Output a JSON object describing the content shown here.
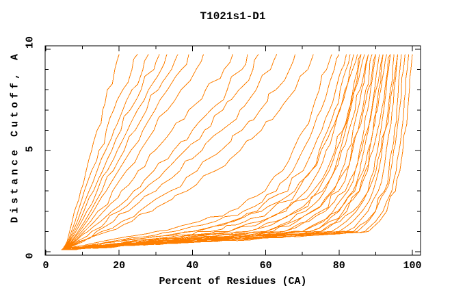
{
  "colors": {
    "curve": "#ff7f00",
    "axis": "#000000",
    "background": "#ffffff",
    "text": "#000000"
  },
  "chart_data": {
    "type": "line",
    "title": "T1021s1-D1",
    "xlabel": "Percent of Residues (CA)",
    "ylabel": "Distance Cutoff, A",
    "xlim": [
      0,
      102
    ],
    "ylim": [
      -0.2,
      10.2
    ],
    "grid": false,
    "legend": false,
    "curve_color": "#ff7f00",
    "x_axis": {
      "major_ticks": [
        {
          "value": 0,
          "label": "0"
        },
        {
          "value": 20,
          "label": "20"
        },
        {
          "value": 40,
          "label": "40"
        },
        {
          "value": 60,
          "label": "60"
        },
        {
          "value": 80,
          "label": "80"
        },
        {
          "value": 100,
          "label": "100"
        }
      ],
      "minor_ticks": [
        10,
        30,
        50,
        70,
        90
      ]
    },
    "y_axis": {
      "major_ticks": [
        {
          "value": 0,
          "label": "0"
        },
        {
          "value": 5,
          "label": "5"
        },
        {
          "value": 10,
          "label": "10"
        }
      ],
      "minor_ticks": [
        1,
        2,
        3,
        4,
        6,
        7,
        8,
        9
      ]
    },
    "y_levels": [
      0.1,
      0.3,
      0.5,
      1,
      1.5,
      2,
      3,
      4,
      5,
      6,
      7,
      8,
      9,
      9.75
    ],
    "series": [
      {
        "name": "curve-01",
        "x": [
          4.5,
          5.2,
          5.8,
          6.5,
          7.2,
          7.8,
          9.5,
          11,
          12.5,
          14,
          15.5,
          16.8,
          18.8,
          20
        ]
      },
      {
        "name": "curve-02",
        "x": [
          4.4,
          5.4,
          6,
          7,
          8,
          8.8,
          10.5,
          12.5,
          14.5,
          16.5,
          18.5,
          21,
          23.5,
          25
        ]
      },
      {
        "name": "curve-03",
        "x": [
          4.6,
          5.5,
          6.2,
          7.4,
          8.6,
          9.6,
          11.8,
          14,
          16.3,
          18.6,
          21,
          23.5,
          26.5,
          28
        ]
      },
      {
        "name": "curve-04",
        "x": [
          4.5,
          5.6,
          6.4,
          7.8,
          9.2,
          10.4,
          13,
          15.5,
          18,
          20.5,
          23,
          26,
          29.5,
          31
        ]
      },
      {
        "name": "curve-05",
        "x": [
          4.7,
          5.8,
          6.6,
          8.2,
          9.8,
          11.2,
          14,
          16.8,
          19.5,
          22.3,
          25,
          28,
          31.5,
          33
        ]
      },
      {
        "name": "curve-06",
        "x": [
          4.5,
          5.9,
          6.9,
          8.8,
          10.6,
          12.2,
          15.3,
          18.4,
          21.4,
          24.4,
          27.5,
          30.7,
          34.3,
          36
        ]
      },
      {
        "name": "curve-07",
        "x": [
          4.6,
          6,
          7.1,
          9.2,
          11.2,
          13,
          16.5,
          19.8,
          23.2,
          26.5,
          29.8,
          33.2,
          37,
          39
        ]
      },
      {
        "name": "curve-08",
        "x": [
          4.8,
          6.2,
          7.4,
          9.8,
          12.2,
          14.2,
          18.2,
          22,
          25.8,
          29.5,
          33.2,
          36.9,
          41,
          43
        ]
      },
      {
        "name": "curve-09",
        "x": [
          4.6,
          6.3,
          7.7,
          10.5,
          13.3,
          15.8,
          20.6,
          25.2,
          29.8,
          34.4,
          39,
          43.6,
          48.6,
          51
        ]
      },
      {
        "name": "curve-10",
        "x": [
          4.7,
          6.5,
          8,
          11.5,
          15,
          18,
          24,
          29.5,
          34.8,
          40,
          45,
          49.5,
          53.5,
          55
        ]
      },
      {
        "name": "curve-11",
        "x": [
          4.9,
          6.8,
          8.4,
          12.5,
          16.5,
          20,
          26.5,
          32.5,
          38,
          43.3,
          48.3,
          52.7,
          56.5,
          58
        ]
      },
      {
        "name": "curve-12",
        "x": [
          4.8,
          7,
          8.9,
          13.8,
          18.5,
          22.5,
          30,
          36.6,
          42.6,
          48,
          53,
          57.4,
          61.3,
          63
        ]
      },
      {
        "name": "curve-13",
        "x": [
          5,
          7.3,
          9.5,
          15.3,
          20.8,
          25.5,
          34,
          41.3,
          47.8,
          53.5,
          58.5,
          62.8,
          66.5,
          68
        ]
      },
      {
        "name": "curve-14",
        "x": [
          4.9,
          7.6,
          10.2,
          17,
          23.5,
          29,
          38.5,
          46.3,
          53,
          58.8,
          63.8,
          68,
          71.5,
          73
        ]
      },
      {
        "name": "curve-15",
        "x": [
          4.2,
          10,
          15,
          30,
          42,
          50.2,
          59.8,
          64.6,
          67.4,
          70.3,
          72.7,
          74.6,
          76.6,
          78
        ]
      },
      {
        "name": "curve-16",
        "x": [
          4.5,
          11,
          17.5,
          35,
          46.3,
          53.9,
          62.9,
          67.4,
          70.1,
          72.8,
          75.1,
          76.9,
          78.7,
          80
        ]
      },
      {
        "name": "curve-17",
        "x": [
          4.8,
          12,
          20,
          40,
          50.5,
          57.6,
          66,
          70.2,
          72.8,
          75.3,
          77.4,
          79.1,
          80.7,
          82
        ]
      },
      {
        "name": "curve-18",
        "x": [
          4.3,
          13,
          22.5,
          45,
          54.5,
          61,
          68.6,
          72.4,
          74.6,
          76.9,
          78.8,
          80.3,
          81.9,
          83
        ]
      },
      {
        "name": "curve-19",
        "x": [
          4.6,
          14,
          25,
          50,
          58.5,
          64.3,
          71.1,
          74.5,
          76.5,
          78.6,
          80.3,
          81.6,
          83,
          84
        ]
      },
      {
        "name": "curve-20",
        "x": [
          5,
          12,
          20,
          40,
          51.3,
          58.9,
          67.9,
          72.4,
          75.1,
          77.8,
          80.1,
          81.9,
          83.7,
          85
        ]
      },
      {
        "name": "curve-21",
        "x": [
          4.4,
          15,
          27.5,
          55,
          62.8,
          68,
          74.2,
          77.3,
          79.2,
          81,
          82.6,
          83.8,
          85.1,
          86
        ]
      },
      {
        "name": "curve-22",
        "x": [
          4.7,
          16,
          30,
          60,
          66.5,
          70.9,
          76.1,
          78.7,
          80.3,
          81.8,
          83.1,
          84.2,
          85.2,
          86
        ]
      },
      {
        "name": "curve-23",
        "x": [
          4.9,
          14,
          25,
          50,
          59.3,
          65.5,
          72.9,
          76.6,
          78.9,
          81.1,
          82.9,
          84.4,
          85.9,
          87
        ]
      },
      {
        "name": "curve-24",
        "x": [
          4.2,
          16.4,
          31,
          62,
          68.5,
          72.9,
          78.1,
          80.7,
          82.3,
          83.8,
          85.1,
          86.2,
          87.2,
          88
        ]
      },
      {
        "name": "curve-25",
        "x": [
          4.5,
          15,
          27.5,
          55,
          63.3,
          68.9,
          75.5,
          78.8,
          80.7,
          82.7,
          84.4,
          85.7,
          87,
          88
        ]
      },
      {
        "name": "curve-26",
        "x": [
          4.8,
          17,
          32.5,
          65,
          71,
          75.1,
          79.9,
          82.3,
          83.7,
          85.2,
          86.4,
          87.3,
          88.3,
          89
        ]
      },
      {
        "name": "curve-27",
        "x": [
          4.3,
          18,
          35,
          70,
          75,
          78.4,
          82.4,
          84.4,
          85.6,
          86.8,
          87.8,
          88.6,
          89.4,
          90
        ]
      },
      {
        "name": "curve-28",
        "x": [
          4.6,
          16,
          30,
          60,
          67.5,
          72.6,
          78.6,
          81.6,
          83.4,
          85.2,
          86.7,
          87.9,
          89.1,
          90
        ]
      },
      {
        "name": "curve-29",
        "x": [
          5,
          18.4,
          36,
          72,
          76.8,
          80,
          83.8,
          85.7,
          86.8,
          88,
          88.9,
          89.7,
          90.4,
          91
        ]
      },
      {
        "name": "curve-30",
        "x": [
          4.4,
          17,
          32.5,
          65,
          71.8,
          76.3,
          81.7,
          84.4,
          86.1,
          87.7,
          89,
          90.1,
          91.2,
          92
        ]
      },
      {
        "name": "curve-31",
        "x": [
          4.7,
          19,
          37.5,
          75,
          79.3,
          82.1,
          85.5,
          87.2,
          88.3,
          89.3,
          90.1,
          90.8,
          91.5,
          92
        ]
      },
      {
        "name": "curve-32",
        "x": [
          4.9,
          18,
          35,
          70,
          75.8,
          79.7,
          84.3,
          86.6,
          87.9,
          89.3,
          90.5,
          91.4,
          92.3,
          93
        ]
      },
      {
        "name": "curve-33",
        "x": [
          4.2,
          19.6,
          39,
          78,
          82,
          84.7,
          87.9,
          89.5,
          90.5,
          91.4,
          92.2,
          92.9,
          93.5,
          94
        ]
      },
      {
        "name": "curve-34",
        "x": [
          4.5,
          18.4,
          36,
          72,
          77.5,
          81.2,
          85.6,
          87.8,
          89.2,
          90.5,
          91.6,
          92.5,
          93.3,
          94
        ]
      },
      {
        "name": "curve-35",
        "x": [
          4.8,
          20,
          40,
          80,
          83.8,
          86.3,
          89.3,
          90.8,
          91.7,
          92.6,
          93.4,
          94,
          94.6,
          95
        ]
      },
      {
        "name": "curve-36",
        "x": [
          4.3,
          20.4,
          41,
          82,
          85.5,
          87.9,
          90.7,
          92.1,
          92.9,
          93.8,
          94.5,
          95,
          95.6,
          96
        ]
      },
      {
        "name": "curve-37",
        "x": [
          4.6,
          19,
          37.5,
          75,
          80.3,
          83.8,
          88,
          90.1,
          91.4,
          92.6,
          93.7,
          94.5,
          95.4,
          96
        ]
      },
      {
        "name": "curve-38",
        "x": [
          5,
          21,
          42.5,
          85,
          88,
          90,
          92.4,
          93.6,
          94.4,
          95.1,
          95.7,
          96.2,
          96.6,
          97
        ]
      },
      {
        "name": "curve-39",
        "x": [
          4.4,
          20.8,
          42,
          84,
          87.5,
          89.9,
          92.7,
          94.1,
          94.9,
          95.8,
          96.5,
          97,
          97.6,
          98
        ]
      },
      {
        "name": "curve-40",
        "x": [
          4.7,
          21.4,
          43.5,
          87,
          90,
          92,
          94.4,
          95.6,
          96.4,
          97.1,
          97.7,
          98.2,
          98.6,
          99
        ]
      },
      {
        "name": "curve-41",
        "x": [
          4.9,
          21.6,
          44,
          88,
          91,
          93,
          95.4,
          96.6,
          97.4,
          98.1,
          98.7,
          99.2,
          99.6,
          100
        ]
      }
    ]
  }
}
